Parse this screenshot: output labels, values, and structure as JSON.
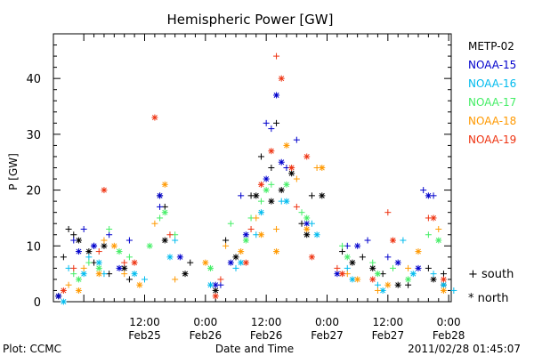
{
  "chart_data": {
    "type": "scatter",
    "title": "Hemispheric Power [GW]",
    "xlabel": "Date and Time",
    "ylabel": "P [GW]",
    "xlim": [
      "2011-02-24T18:00",
      "2011-02-28T00:30"
    ],
    "ylim": [
      0,
      48
    ],
    "yticks": [
      0,
      10,
      20,
      30,
      40
    ],
    "xticks": [
      {
        "at": "2011-02-25T12:00",
        "time": "12:00",
        "date": "Feb25"
      },
      {
        "at": "2011-02-26T00:00",
        "time": "0:00",
        "date": "Feb26"
      },
      {
        "at": "2011-02-26T12:00",
        "time": "12:00",
        "date": "Feb26"
      },
      {
        "at": "2011-02-27T00:00",
        "time": "0:00",
        "date": "Feb27"
      },
      {
        "at": "2011-02-27T12:00",
        "time": "12:00",
        "date": "Feb27"
      },
      {
        "at": "2011-02-28T00:00",
        "time": "0:00",
        "date": "Feb28"
      }
    ],
    "grid": false,
    "legend_position": "right",
    "marker_legend": [
      {
        "symbol": "+",
        "label": "south"
      },
      {
        "symbol": "*",
        "label": "north"
      }
    ],
    "series": [
      {
        "name": "METP-02",
        "color": "#000000",
        "south": [
          [
            "2011-02-24T20:00",
            8
          ],
          [
            "2011-02-24T21:00",
            13
          ],
          [
            "2011-02-24T22:00",
            12
          ],
          [
            "2011-02-25T02:00",
            7
          ],
          [
            "2011-02-25T05:00",
            5
          ],
          [
            "2011-02-25T09:00",
            4
          ],
          [
            "2011-02-25T15:00",
            19
          ],
          [
            "2011-02-25T16:00",
            17
          ],
          [
            "2011-02-25T21:00",
            7
          ],
          [
            "2011-02-26T04:00",
            11
          ],
          [
            "2011-02-26T09:00",
            19
          ],
          [
            "2011-02-26T11:00",
            26
          ],
          [
            "2011-02-26T13:00",
            24
          ],
          [
            "2011-02-26T14:00",
            32
          ],
          [
            "2011-02-26T19:00",
            14
          ],
          [
            "2011-02-26T21:00",
            19
          ],
          [
            "2011-02-27T03:00",
            9
          ],
          [
            "2011-02-27T07:00",
            8
          ],
          [
            "2011-02-27T11:00",
            5
          ],
          [
            "2011-02-27T16:00",
            3
          ],
          [
            "2011-02-27T20:00",
            6
          ],
          [
            "2011-02-27T23:00",
            5
          ]
        ],
        "north": [
          [
            "2011-02-24T19:00",
            1
          ],
          [
            "2011-02-24T23:00",
            11
          ],
          [
            "2011-02-25T01:00",
            9
          ],
          [
            "2011-02-25T04:00",
            10
          ],
          [
            "2011-02-25T08:00",
            6
          ],
          [
            "2011-02-25T16:00",
            11
          ],
          [
            "2011-02-25T20:00",
            5
          ],
          [
            "2011-02-26T02:00",
            2
          ],
          [
            "2011-02-26T06:00",
            8
          ],
          [
            "2011-02-26T10:00",
            19
          ],
          [
            "2011-02-26T13:00",
            18
          ],
          [
            "2011-02-26T15:00",
            20
          ],
          [
            "2011-02-26T17:00",
            23
          ],
          [
            "2011-02-26T20:00",
            12
          ],
          [
            "2011-02-26T23:00",
            19
          ],
          [
            "2011-02-27T05:00",
            7
          ],
          [
            "2011-02-27T09:00",
            6
          ],
          [
            "2011-02-27T14:00",
            3
          ],
          [
            "2011-02-27T21:00",
            4
          ],
          [
            "2011-02-27T23:00",
            3
          ]
        ]
      },
      {
        "name": "NOAA-15",
        "color": "#0000cc",
        "south": [
          [
            "2011-02-24T22:00",
            11
          ],
          [
            "2011-02-25T00:00",
            13
          ],
          [
            "2011-02-25T02:00",
            10
          ],
          [
            "2011-02-25T05:00",
            12
          ],
          [
            "2011-02-25T09:00",
            11
          ],
          [
            "2011-02-25T15:00",
            17
          ],
          [
            "2011-02-26T03:00",
            3
          ],
          [
            "2011-02-26T07:00",
            19
          ],
          [
            "2011-02-26T12:00",
            32
          ],
          [
            "2011-02-26T13:00",
            31
          ],
          [
            "2011-02-26T16:00",
            24
          ],
          [
            "2011-02-26T18:00",
            29
          ],
          [
            "2011-02-27T04:00",
            10
          ],
          [
            "2011-02-27T08:00",
            11
          ],
          [
            "2011-02-27T12:00",
            8
          ],
          [
            "2011-02-27T19:00",
            20
          ],
          [
            "2011-02-27T21:00",
            19
          ]
        ],
        "north": [
          [
            "2011-02-24T19:00",
            1
          ],
          [
            "2011-02-24T23:00",
            9
          ],
          [
            "2011-02-25T02:00",
            10
          ],
          [
            "2011-02-25T07:00",
            6
          ],
          [
            "2011-02-25T15:00",
            19
          ],
          [
            "2011-02-25T19:00",
            8
          ],
          [
            "2011-02-26T02:00",
            3
          ],
          [
            "2011-02-26T05:00",
            7
          ],
          [
            "2011-02-26T08:00",
            12
          ],
          [
            "2011-02-26T12:00",
            22
          ],
          [
            "2011-02-26T14:00",
            37
          ],
          [
            "2011-02-26T15:00",
            25
          ],
          [
            "2011-02-26T20:00",
            14
          ],
          [
            "2011-02-27T02:00",
            5
          ],
          [
            "2011-02-27T06:00",
            10
          ],
          [
            "2011-02-27T14:00",
            7
          ],
          [
            "2011-02-27T18:00",
            6
          ],
          [
            "2011-02-27T20:00",
            19
          ]
        ]
      },
      {
        "name": "NOAA-16",
        "color": "#00bbee",
        "south": [
          [
            "2011-02-24T21:00",
            6
          ],
          [
            "2011-02-25T01:00",
            8
          ],
          [
            "2011-02-25T04:00",
            5
          ],
          [
            "2011-02-25T12:00",
            4
          ],
          [
            "2011-02-25T18:00",
            11
          ],
          [
            "2011-02-26T06:00",
            6
          ],
          [
            "2011-02-26T10:00",
            12
          ],
          [
            "2011-02-26T15:00",
            18
          ],
          [
            "2011-02-26T21:00",
            14
          ],
          [
            "2011-02-27T04:00",
            6
          ],
          [
            "2011-02-27T10:00",
            3
          ],
          [
            "2011-02-27T15:00",
            11
          ],
          [
            "2011-02-27T21:00",
            5
          ],
          [
            "2011-02-28T01:00",
            2
          ]
        ],
        "north": [
          [
            "2011-02-24T20:00",
            0
          ],
          [
            "2011-02-25T00:00",
            5
          ],
          [
            "2011-02-25T03:00",
            7
          ],
          [
            "2011-02-25T10:00",
            5
          ],
          [
            "2011-02-25T17:00",
            8
          ],
          [
            "2011-02-26T01:00",
            3
          ],
          [
            "2011-02-26T07:00",
            7
          ],
          [
            "2011-02-26T11:00",
            16
          ],
          [
            "2011-02-26T16:00",
            18
          ],
          [
            "2011-02-26T22:00",
            12
          ],
          [
            "2011-02-27T05:00",
            4
          ],
          [
            "2011-02-27T11:00",
            2
          ],
          [
            "2011-02-27T17:00",
            5
          ],
          [
            "2011-02-27T23:00",
            3
          ]
        ]
      },
      {
        "name": "NOAA-17",
        "color": "#44ee66",
        "south": [
          [
            "2011-02-24T22:00",
            5
          ],
          [
            "2011-02-25T01:00",
            7
          ],
          [
            "2011-02-25T05:00",
            13
          ],
          [
            "2011-02-25T09:00",
            8
          ],
          [
            "2011-02-25T15:00",
            15
          ],
          [
            "2011-02-25T18:00",
            12
          ],
          [
            "2011-02-26T05:00",
            14
          ],
          [
            "2011-02-26T09:00",
            15
          ],
          [
            "2011-02-26T11:00",
            18
          ],
          [
            "2011-02-26T13:00",
            21
          ],
          [
            "2011-02-26T19:00",
            16
          ],
          [
            "2011-02-27T03:00",
            10
          ],
          [
            "2011-02-27T09:00",
            7
          ],
          [
            "2011-02-27T13:00",
            6
          ],
          [
            "2011-02-27T20:00",
            12
          ]
        ],
        "north": [
          [
            "2011-02-24T23:00",
            4
          ],
          [
            "2011-02-25T03:00",
            6
          ],
          [
            "2011-02-25T07:00",
            9
          ],
          [
            "2011-02-25T13:00",
            10
          ],
          [
            "2011-02-25T16:00",
            16
          ],
          [
            "2011-02-26T01:00",
            6
          ],
          [
            "2011-02-26T08:00",
            11
          ],
          [
            "2011-02-26T12:00",
            20
          ],
          [
            "2011-02-26T16:00",
            21
          ],
          [
            "2011-02-26T20:00",
            15
          ],
          [
            "2011-02-27T04:00",
            8
          ],
          [
            "2011-02-27T10:00",
            5
          ],
          [
            "2011-02-27T16:00",
            4
          ],
          [
            "2011-02-27T22:00",
            11
          ]
        ]
      },
      {
        "name": "NOAA-18",
        "color": "#ff9900",
        "south": [
          [
            "2011-02-24T21:00",
            3
          ],
          [
            "2011-02-25T00:00",
            6
          ],
          [
            "2011-02-25T04:00",
            11
          ],
          [
            "2011-02-25T08:00",
            5
          ],
          [
            "2011-02-25T14:00",
            14
          ],
          [
            "2011-02-25T18:00",
            4
          ],
          [
            "2011-02-26T04:00",
            10
          ],
          [
            "2011-02-26T10:00",
            15
          ],
          [
            "2011-02-26T14:00",
            13
          ],
          [
            "2011-02-26T18:00",
            22
          ],
          [
            "2011-02-26T22:00",
            24
          ],
          [
            "2011-02-27T04:00",
            5
          ],
          [
            "2011-02-27T10:00",
            2
          ],
          [
            "2011-02-27T16:00",
            6
          ],
          [
            "2011-02-27T22:00",
            13
          ]
        ],
        "north": [
          [
            "2011-02-24T23:00",
            2
          ],
          [
            "2011-02-25T03:00",
            5
          ],
          [
            "2011-02-25T06:00",
            10
          ],
          [
            "2011-02-25T11:00",
            3
          ],
          [
            "2011-02-25T16:00",
            21
          ],
          [
            "2011-02-26T00:00",
            7
          ],
          [
            "2011-02-26T07:00",
            9
          ],
          [
            "2011-02-26T11:00",
            12
          ],
          [
            "2011-02-26T14:00",
            9
          ],
          [
            "2011-02-26T16:00",
            28
          ],
          [
            "2011-02-26T20:00",
            13
          ],
          [
            "2011-02-26T23:00",
            24
          ],
          [
            "2011-02-27T06:00",
            4
          ],
          [
            "2011-02-27T12:00",
            3
          ],
          [
            "2011-02-27T18:00",
            9
          ],
          [
            "2011-02-27T23:00",
            2
          ]
        ]
      },
      {
        "name": "NOAA-19",
        "color": "#ee3311",
        "south": [
          [
            "2011-02-24T22:00",
            6
          ],
          [
            "2011-02-25T03:00",
            9
          ],
          [
            "2011-02-25T08:00",
            7
          ],
          [
            "2011-02-25T17:00",
            12
          ],
          [
            "2011-02-26T03:00",
            4
          ],
          [
            "2011-02-26T09:00",
            13
          ],
          [
            "2011-02-26T14:00",
            44
          ],
          [
            "2011-02-26T18:00",
            17
          ],
          [
            "2011-02-27T02:00",
            6
          ],
          [
            "2011-02-27T12:00",
            16
          ],
          [
            "2011-02-27T20:00",
            15
          ]
        ],
        "north": [
          [
            "2011-02-24T20:00",
            2
          ],
          [
            "2011-02-25T04:00",
            20
          ],
          [
            "2011-02-25T10:00",
            7
          ],
          [
            "2011-02-25T14:00",
            33
          ],
          [
            "2011-02-26T02:00",
            1
          ],
          [
            "2011-02-26T08:00",
            7
          ],
          [
            "2011-02-26T11:00",
            21
          ],
          [
            "2011-02-26T13:00",
            27
          ],
          [
            "2011-02-26T15:00",
            40
          ],
          [
            "2011-02-26T17:00",
            24
          ],
          [
            "2011-02-26T20:00",
            26
          ],
          [
            "2011-02-26T21:00",
            8
          ],
          [
            "2011-02-27T03:00",
            5
          ],
          [
            "2011-02-27T09:00",
            4
          ],
          [
            "2011-02-27T13:00",
            11
          ],
          [
            "2011-02-27T21:00",
            15
          ],
          [
            "2011-02-27T23:00",
            4
          ]
        ]
      }
    ]
  },
  "footer": {
    "left": "Plot: CCMC",
    "center": "Date and Time",
    "right": "2011/02/28 01:45:07"
  }
}
